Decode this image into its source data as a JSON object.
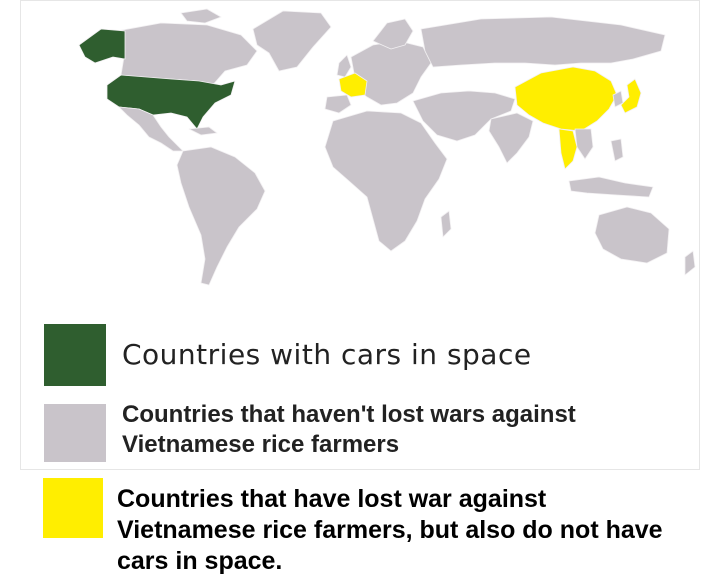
{
  "colors": {
    "cars_in_space": "#2f5e2f",
    "not_lost": "#c9c4ca",
    "lost_no_cars": "#ffee00",
    "ocean": "#ffffff",
    "border": "#f2f0f2"
  },
  "map": {
    "regions_green": [
      "United States",
      "Alaska"
    ],
    "regions_yellow": [
      "China",
      "France",
      "Japan",
      "Thailand"
    ]
  },
  "legend": [
    {
      "label": "Countries with cars in space",
      "color": "#2f5e2f"
    },
    {
      "label": "Countries that haven't lost wars against Vietnamese rice farmers",
      "color": "#c9c4ca"
    },
    {
      "label": "Countries that have lost war against Vietnamese rice farmers, but also do not have cars in space.",
      "color": "#ffee00"
    }
  ]
}
